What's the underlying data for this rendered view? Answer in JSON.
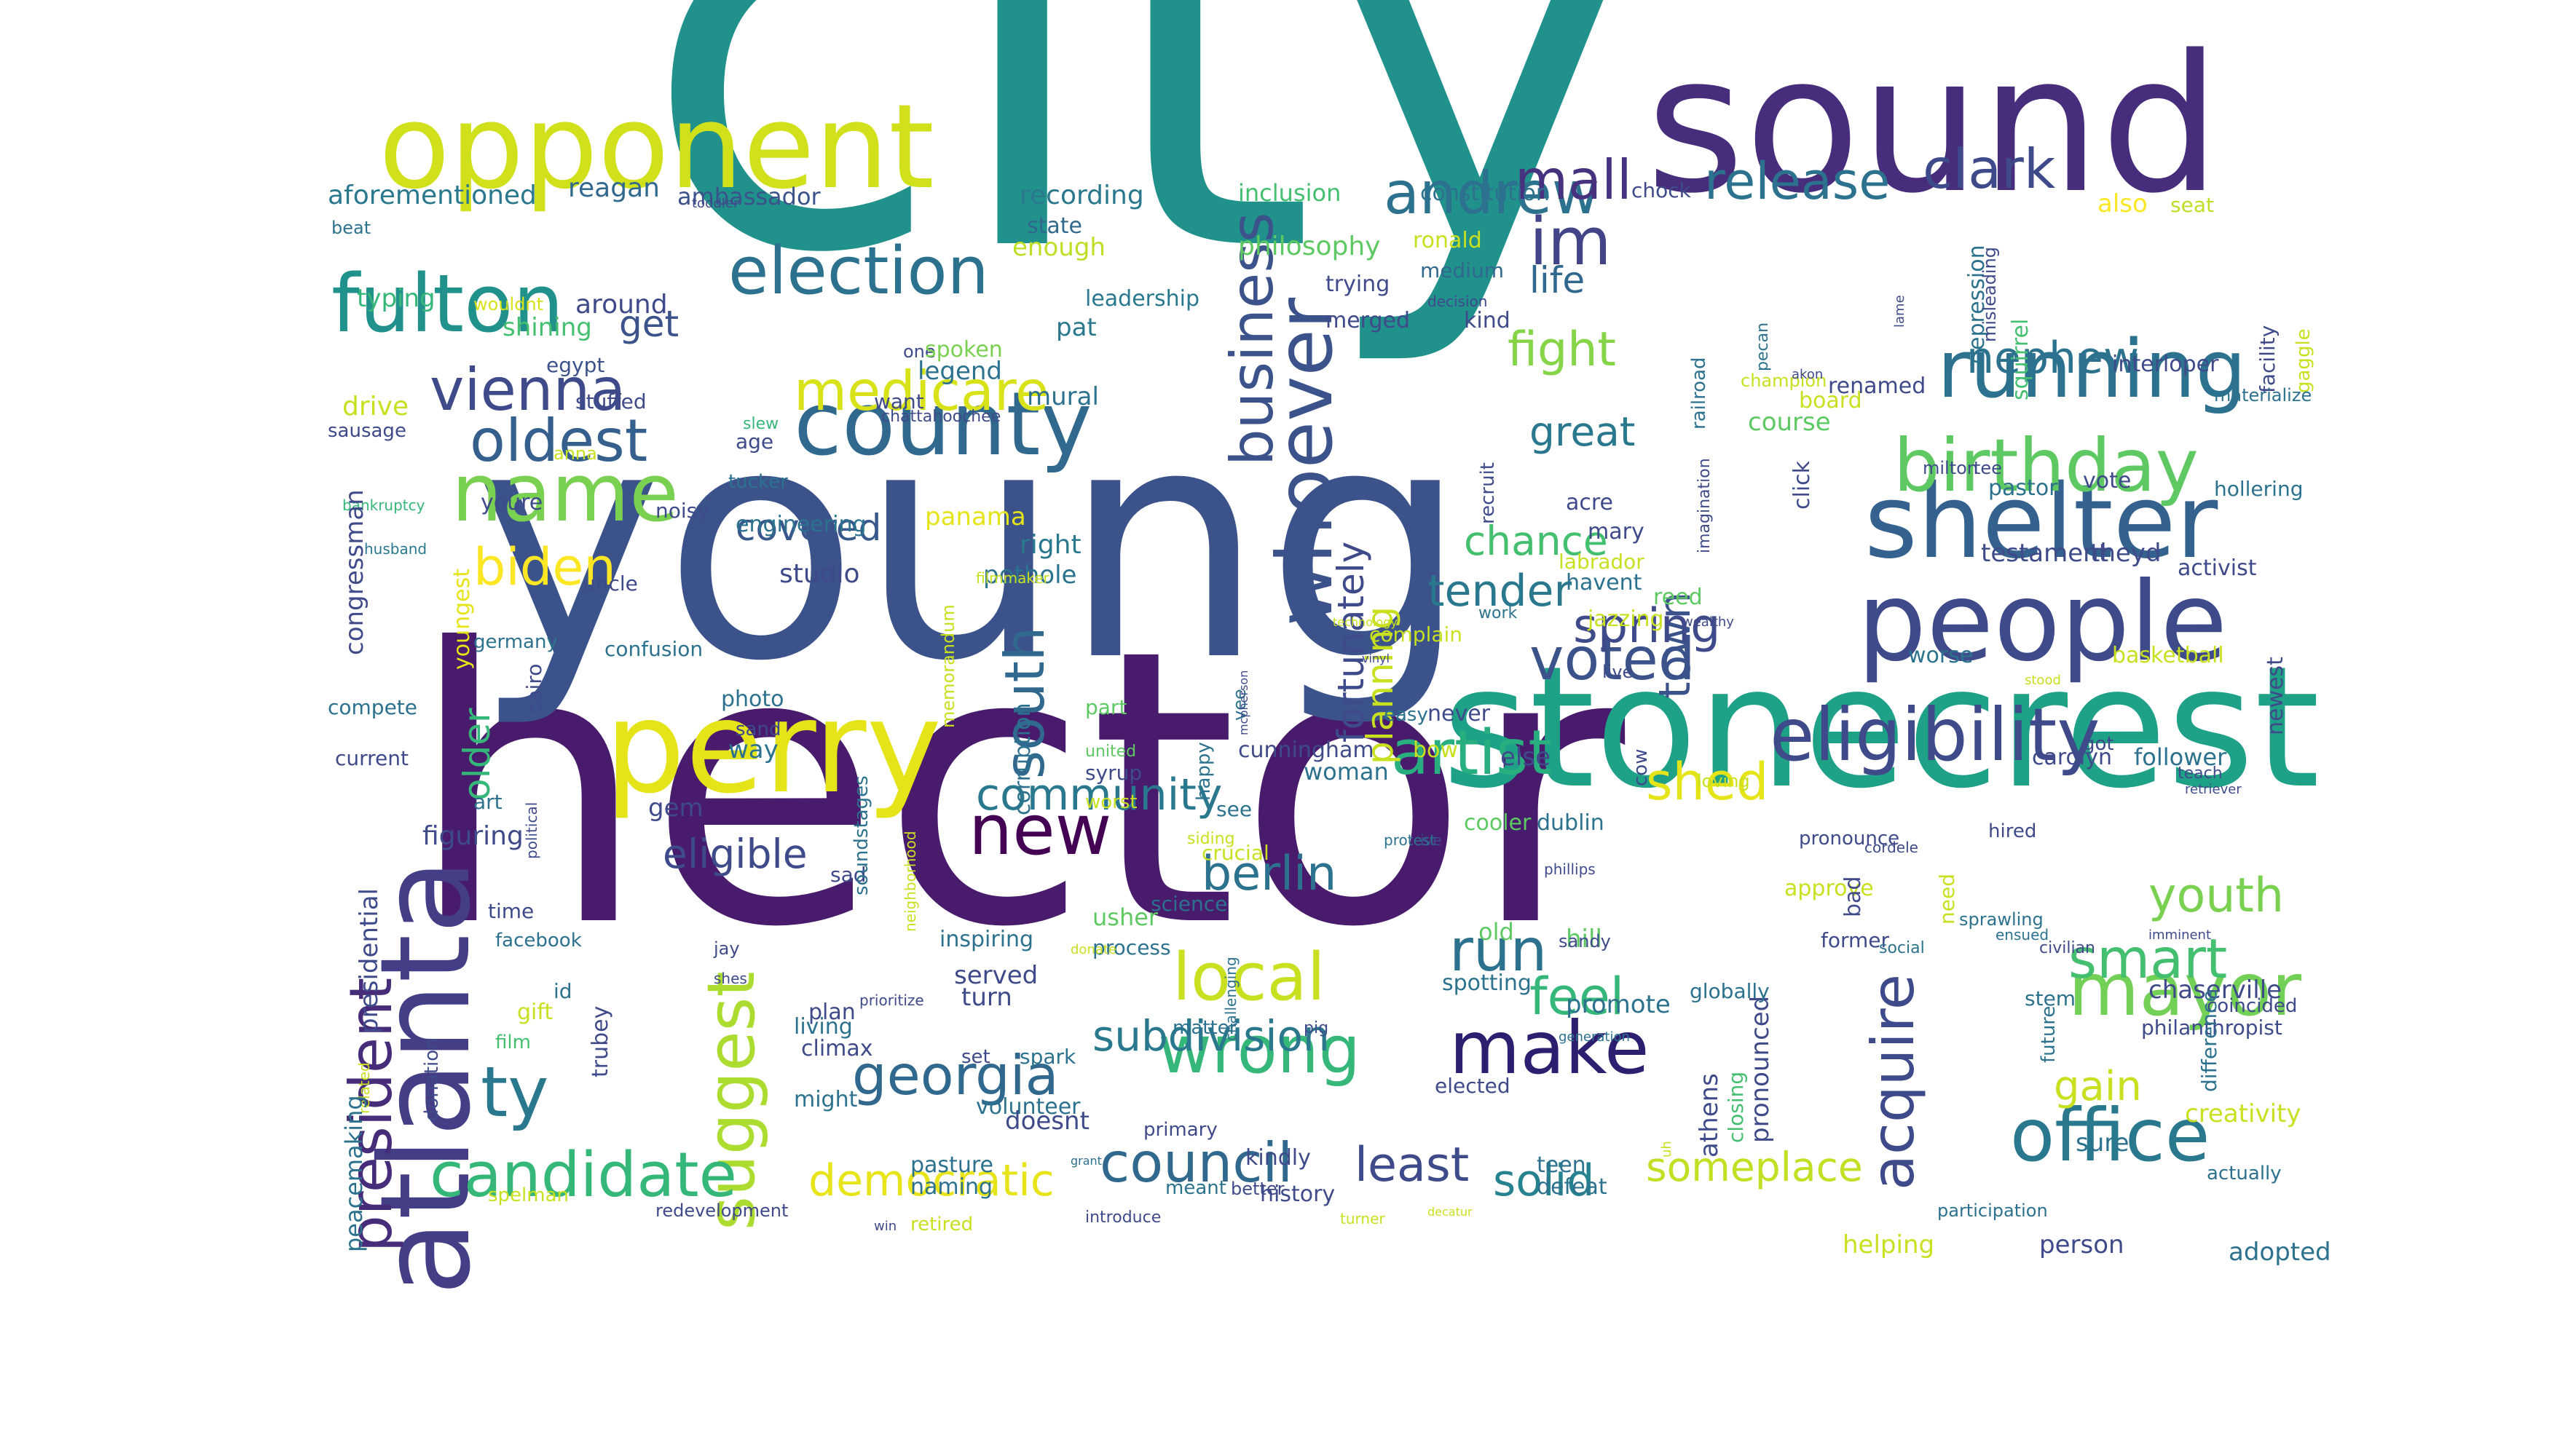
{
  "palette": [
    "#440154",
    "#482475",
    "#414487",
    "#355f8d",
    "#2a788e",
    "#21918c",
    "#22a884",
    "#44bf70",
    "#7ad151",
    "#bddf26",
    "#fde725"
  ],
  "words": [
    {
      "text": "hector",
      "color": "#481b6d"
    },
    {
      "text": "city",
      "color": "#21918c"
    },
    {
      "text": "young",
      "color": "#3b528b"
    },
    {
      "text": "sound",
      "color": "#472d7b"
    },
    {
      "text": "stonecrest",
      "color": "#1fa187"
    },
    {
      "text": "opponent",
      "color": "#d0e11c"
    },
    {
      "text": "people",
      "color": "#3e4a89"
    },
    {
      "text": "atlanta",
      "color": "#433e85"
    },
    {
      "text": "perry",
      "color": "#e5e419"
    },
    {
      "text": "shelter",
      "color": "#34618d"
    },
    {
      "text": "president",
      "color": "#472c7a"
    },
    {
      "text": "fulton",
      "color": "#21918c"
    },
    {
      "text": "county",
      "color": "#31688e"
    },
    {
      "text": "whoever",
      "color": "#3b528b"
    },
    {
      "text": "running",
      "color": "#2c728e"
    },
    {
      "text": "eligibility",
      "color": "#3e4a89"
    },
    {
      "text": "office",
      "color": "#2a788e"
    },
    {
      "text": "birthday",
      "color": "#5ec962"
    },
    {
      "text": "election",
      "color": "#2c728e"
    },
    {
      "text": "business",
      "color": "#3b528b"
    },
    {
      "text": "mayor",
      "color": "#73d056"
    },
    {
      "text": "name",
      "color": "#7ad151"
    },
    {
      "text": "south",
      "color": "#31688e"
    },
    {
      "text": "new",
      "color": "#440154"
    },
    {
      "text": "wrong",
      "color": "#35b779"
    },
    {
      "text": "suggest",
      "color": "#addc30"
    },
    {
      "text": "candidate",
      "color": "#35b779"
    },
    {
      "text": "artist",
      "color": "#29af7f"
    },
    {
      "text": "make",
      "color": "#2d1e6f"
    },
    {
      "text": "local",
      "color": "#c8e020"
    },
    {
      "text": "voted",
      "color": "#3b528b"
    },
    {
      "text": "medicare",
      "color": "#d8e219"
    },
    {
      "text": "vienna",
      "color": "#3e4a89"
    },
    {
      "text": "oldest",
      "color": "#355f8d"
    },
    {
      "text": "andrew",
      "color": "#2c728e"
    },
    {
      "text": "release",
      "color": "#2c728e"
    },
    {
      "text": "clark",
      "color": "#3e4a89"
    },
    {
      "text": "mall",
      "color": "#46327e"
    },
    {
      "text": "im",
      "color": "#414487"
    },
    {
      "text": "acquire",
      "color": "#3e4a89"
    },
    {
      "text": "smart",
      "color": "#44bf70"
    },
    {
      "text": "youth",
      "color": "#7ad151"
    },
    {
      "text": "shed",
      "color": "#e5e419"
    },
    {
      "text": "biden",
      "color": "#fde725"
    },
    {
      "text": "ty",
      "color": "#2a788e"
    },
    {
      "text": "georgia",
      "color": "#31688e"
    },
    {
      "text": "subdivision",
      "color": "#2a788e"
    },
    {
      "text": "council",
      "color": "#31688e"
    },
    {
      "text": "democratic",
      "color": "#e7e419"
    },
    {
      "text": "least",
      "color": "#3e4a89"
    },
    {
      "text": "solid",
      "color": "#26828e"
    },
    {
      "text": "someplace",
      "color": "#c2df23"
    },
    {
      "text": "community",
      "color": "#2a788e"
    },
    {
      "text": "berlin",
      "color": "#2c728e"
    },
    {
      "text": "eligible",
      "color": "#3e4a89"
    },
    {
      "text": "run",
      "color": "#2c728e"
    },
    {
      "text": "feel",
      "color": "#35b779"
    },
    {
      "text": "town",
      "color": "#3b528b"
    },
    {
      "text": "fight",
      "color": "#86d549"
    },
    {
      "text": "tender",
      "color": "#2a788e"
    },
    {
      "text": "spring",
      "color": "#3e4a89"
    },
    {
      "text": "nephew",
      "color": "#2c728e"
    },
    {
      "text": "fortunately",
      "color": "#3e4a89"
    },
    {
      "text": "planning",
      "color": "#c8e020"
    },
    {
      "text": "covered",
      "color": "#38588c"
    },
    {
      "text": "older",
      "color": "#35b779"
    },
    {
      "text": "great",
      "color": "#2a788e"
    },
    {
      "text": "chance",
      "color": "#44bf70"
    },
    {
      "text": "get",
      "color": "#3b528b"
    },
    {
      "text": "life",
      "color": "#31688e"
    },
    {
      "text": "aforementioned",
      "color": "#2a788e"
    },
    {
      "text": "reagan",
      "color": "#31688e"
    },
    {
      "text": "ambassador",
      "color": "#3b528b"
    },
    {
      "text": "recording",
      "color": "#2a788e"
    },
    {
      "text": "inclusion",
      "color": "#44bf70"
    },
    {
      "text": "constitution",
      "color": "#2c728e"
    },
    {
      "text": "chock",
      "color": "#3e4a89"
    },
    {
      "text": "also",
      "color": "#fde725"
    },
    {
      "text": "seat",
      "color": "#bddf26"
    },
    {
      "text": "state",
      "color": "#31688e"
    },
    {
      "text": "enough",
      "color": "#bddf26"
    },
    {
      "text": "philosophy",
      "color": "#5ec962"
    },
    {
      "text": "ronald",
      "color": "#c8e020"
    },
    {
      "text": "medium",
      "color": "#31688e"
    },
    {
      "text": "typing",
      "color": "#35b779"
    },
    {
      "text": "wouldnt",
      "color": "#d8e219"
    },
    {
      "text": "around",
      "color": "#3e4a89"
    },
    {
      "text": "shining",
      "color": "#44bf70"
    },
    {
      "text": "egypt",
      "color": "#3b528b"
    },
    {
      "text": "leadership",
      "color": "#2a788e"
    },
    {
      "text": "trying",
      "color": "#3e4a89"
    },
    {
      "text": "merged",
      "color": "#3e4a89"
    },
    {
      "text": "kind",
      "color": "#3e4a89"
    },
    {
      "text": "pat",
      "color": "#2a788e"
    },
    {
      "text": "one",
      "color": "#3e4a89"
    },
    {
      "text": "spoken",
      "color": "#7ad151"
    },
    {
      "text": "legend",
      "color": "#2c728e"
    },
    {
      "text": "mural",
      "color": "#2c728e"
    },
    {
      "text": "drive",
      "color": "#c8e020"
    },
    {
      "text": "sausage",
      "color": "#3e4a89"
    },
    {
      "text": "stuffed",
      "color": "#3e4a89"
    },
    {
      "text": "want",
      "color": "#3e4a89"
    },
    {
      "text": "slew",
      "color": "#35b779"
    },
    {
      "text": "age",
      "color": "#3e4a89"
    },
    {
      "text": "chattahoochee",
      "color": "#3e4a89"
    },
    {
      "text": "anna",
      "color": "#c8e020"
    },
    {
      "text": "bankruptcy",
      "color": "#35b779"
    },
    {
      "text": "tucker",
      "color": "#2c728e"
    },
    {
      "text": "noisy",
      "color": "#3e4a89"
    },
    {
      "text": "youre",
      "color": "#3e4a89"
    },
    {
      "text": "congressman",
      "color": "#3e4a89"
    },
    {
      "text": "husband",
      "color": "#2a788e"
    },
    {
      "text": "engineering",
      "color": "#2c728e"
    },
    {
      "text": "panama",
      "color": "#e5e419"
    },
    {
      "text": "right",
      "color": "#2a788e"
    },
    {
      "text": "pothole",
      "color": "#2c728e"
    },
    {
      "text": "studio",
      "color": "#3e4a89"
    },
    {
      "text": "youngest",
      "color": "#e5e419"
    },
    {
      "text": "uncle",
      "color": "#3e4a89"
    },
    {
      "text": "germany",
      "color": "#2c728e"
    },
    {
      "text": "confusion",
      "color": "#2c728e"
    },
    {
      "text": "filmmaker",
      "color": "#c8e020"
    },
    {
      "text": "memorandum",
      "color": "#c8e020"
    },
    {
      "text": "compete",
      "color": "#2c728e"
    },
    {
      "text": "cairo",
      "color": "#3e4a89"
    },
    {
      "text": "photo",
      "color": "#2c728e"
    },
    {
      "text": "sand",
      "color": "#3e4a89"
    },
    {
      "text": "way",
      "color": "#2c728e"
    },
    {
      "text": "current",
      "color": "#3e4a89"
    },
    {
      "text": "corruption",
      "color": "#2c728e"
    },
    {
      "text": "part",
      "color": "#5ec962"
    },
    {
      "text": "united",
      "color": "#5ec962"
    },
    {
      "text": "syrup",
      "color": "#3e4a89"
    },
    {
      "text": "worst",
      "color": "#c8e020"
    },
    {
      "text": "happy",
      "color": "#2c728e"
    },
    {
      "text": "vee",
      "color": "#2c728e"
    },
    {
      "text": "mcpherson",
      "color": "#3e4a89"
    },
    {
      "text": "see",
      "color": "#2c728e"
    },
    {
      "text": "woman",
      "color": "#2c728e"
    },
    {
      "text": "gem",
      "color": "#3e4a89"
    },
    {
      "text": "art",
      "color": "#2c728e"
    },
    {
      "text": "figuring",
      "color": "#3e4a89"
    },
    {
      "text": "political",
      "color": "#3e4a89"
    },
    {
      "text": "sad",
      "color": "#3e4a89"
    },
    {
      "text": "soundstages",
      "color": "#2c728e"
    },
    {
      "text": "neighborhood",
      "color": "#c8e020"
    },
    {
      "text": "time",
      "color": "#3e4a89"
    },
    {
      "text": "facebook",
      "color": "#2c728e"
    },
    {
      "text": "jay",
      "color": "#3e4a89"
    },
    {
      "text": "presidential",
      "color": "#3e4a89"
    },
    {
      "text": "usher",
      "color": "#5ec962"
    },
    {
      "text": "process",
      "color": "#2c728e"
    },
    {
      "text": "science",
      "color": "#2c728e"
    },
    {
      "text": "donate",
      "color": "#c8e020"
    },
    {
      "text": "inspiring",
      "color": "#2c728e"
    },
    {
      "text": "served",
      "color": "#3e4a89"
    },
    {
      "text": "shes",
      "color": "#3e4a89"
    },
    {
      "text": "id",
      "color": "#2c728e"
    },
    {
      "text": "gift",
      "color": "#c8e020"
    },
    {
      "text": "film",
      "color": "#44bf70"
    },
    {
      "text": "trubey",
      "color": "#3e4a89"
    },
    {
      "text": "prioritize",
      "color": "#3e4a89"
    },
    {
      "text": "turn",
      "color": "#3e4a89"
    },
    {
      "text": "plan",
      "color": "#3e4a89"
    },
    {
      "text": "living",
      "color": "#2c728e"
    },
    {
      "text": "climax",
      "color": "#3e4a89"
    },
    {
      "text": "set",
      "color": "#3e4a89"
    },
    {
      "text": "spark",
      "color": "#2c728e"
    },
    {
      "text": "volunteer",
      "color": "#2c728e"
    },
    {
      "text": "doesnt",
      "color": "#3e4a89"
    },
    {
      "text": "might",
      "color": "#2c728e"
    },
    {
      "text": "grant",
      "color": "#2c728e"
    },
    {
      "text": "primary",
      "color": "#3e4a89"
    },
    {
      "text": "pasture",
      "color": "#2c728e"
    },
    {
      "text": "naming",
      "color": "#2c728e"
    },
    {
      "text": "donation",
      "color": "#3e4a89"
    },
    {
      "text": "related",
      "color": "#c8e020"
    },
    {
      "text": "peacemaking",
      "color": "#2c728e"
    },
    {
      "text": "spelman",
      "color": "#c8e020"
    },
    {
      "text": "redevelopment",
      "color": "#3e4a89"
    },
    {
      "text": "retired",
      "color": "#c8e020"
    },
    {
      "text": "win",
      "color": "#3e4a89"
    },
    {
      "text": "introduce",
      "color": "#3e4a89"
    },
    {
      "text": "history",
      "color": "#3e4a89"
    },
    {
      "text": "kindly",
      "color": "#3e4a89"
    },
    {
      "text": "meant",
      "color": "#2c728e"
    },
    {
      "text": "better",
      "color": "#3e4a89"
    },
    {
      "text": "matter",
      "color": "#2c728e"
    },
    {
      "text": "challenging",
      "color": "#2c728e"
    },
    {
      "text": "pig",
      "color": "#3e4a89"
    },
    {
      "text": "elected",
      "color": "#3e4a89"
    },
    {
      "text": "turner",
      "color": "#c8e020"
    },
    {
      "text": "decatur",
      "color": "#c8e020"
    },
    {
      "text": "teen",
      "color": "#2c728e"
    },
    {
      "text": "defeat",
      "color": "#2c728e"
    },
    {
      "text": "spotting",
      "color": "#2c728e"
    },
    {
      "text": "promote",
      "color": "#2c728e"
    },
    {
      "text": "hill",
      "color": "#5ec962"
    },
    {
      "text": "old",
      "color": "#5ec962"
    },
    {
      "text": "crucial",
      "color": "#c8e020"
    },
    {
      "text": "siding",
      "color": "#c8e020"
    },
    {
      "text": "ive",
      "color": "#3e4a89"
    },
    {
      "text": "protest",
      "color": "#2c728e"
    },
    {
      "text": "cooler",
      "color": "#5ec962"
    },
    {
      "text": "dublin",
      "color": "#2c728e"
    },
    {
      "text": "phillips",
      "color": "#3e4a89"
    },
    {
      "text": "sandy",
      "color": "#3e4a89"
    },
    {
      "text": "generation",
      "color": "#2c728e"
    },
    {
      "text": "athens",
      "color": "#3e4a89"
    },
    {
      "text": "closing",
      "color": "#44bf70"
    },
    {
      "text": "pronounced",
      "color": "#3e4a89"
    },
    {
      "text": "globally",
      "color": "#2c728e"
    },
    {
      "text": "uh",
      "color": "#c8e020"
    },
    {
      "text": "loving",
      "color": "#c8e020"
    },
    {
      "text": "cow",
      "color": "#3e4a89"
    },
    {
      "text": "live",
      "color": "#3e4a89"
    },
    {
      "text": "jazzing",
      "color": "#c8e020"
    },
    {
      "text": "wealthy",
      "color": "#3e4a89"
    },
    {
      "text": "reed",
      "color": "#5ec962"
    },
    {
      "text": "work",
      "color": "#2c728e"
    },
    {
      "text": "labrador",
      "color": "#c8e020"
    },
    {
      "text": "havent",
      "color": "#2c728e"
    },
    {
      "text": "mary",
      "color": "#3e4a89"
    },
    {
      "text": "acre",
      "color": "#3e4a89"
    },
    {
      "text": "recruit",
      "color": "#3e4a89"
    },
    {
      "text": "railroad",
      "color": "#2c728e"
    },
    {
      "text": "imagination",
      "color": "#3e4a89"
    },
    {
      "text": "complain",
      "color": "#c8e020"
    },
    {
      "text": "cunningham",
      "color": "#3e4a89"
    },
    {
      "text": "vinyl",
      "color": "#3e4a89"
    },
    {
      "text": "technology",
      "color": "#c8e020"
    },
    {
      "text": "never",
      "color": "#3e4a89"
    },
    {
      "text": "easy",
      "color": "#2c728e"
    },
    {
      "text": "bow",
      "color": "#c8e020"
    },
    {
      "text": "else",
      "color": "#3e4a89"
    },
    {
      "text": "decision",
      "color": "#3e4a89"
    },
    {
      "text": "pecan",
      "color": "#2c728e"
    },
    {
      "text": "champion",
      "color": "#c8e020"
    },
    {
      "text": "akon",
      "color": "#3e4a89"
    },
    {
      "text": "renamed",
      "color": "#3e4a89"
    },
    {
      "text": "board",
      "color": "#c8e020"
    },
    {
      "text": "course",
      "color": "#5ec962"
    },
    {
      "text": "click",
      "color": "#3e4a89"
    },
    {
      "text": "lame",
      "color": "#3e4a89"
    },
    {
      "text": "depression",
      "color": "#2c728e"
    },
    {
      "text": "misleading",
      "color": "#3e4a89"
    },
    {
      "text": "squirrel",
      "color": "#44bf70"
    },
    {
      "text": "interloper",
      "color": "#3e4a89"
    },
    {
      "text": "facility",
      "color": "#3e4a89"
    },
    {
      "text": "gaggle",
      "color": "#c8e020"
    },
    {
      "text": "materialize",
      "color": "#2c728e"
    },
    {
      "text": "hollering",
      "color": "#2c728e"
    },
    {
      "text": "milton",
      "color": "#3e4a89"
    },
    {
      "text": "tee",
      "color": "#3e4a89"
    },
    {
      "text": "pastor",
      "color": "#2c728e"
    },
    {
      "text": "vote",
      "color": "#3e4a89"
    },
    {
      "text": "testament",
      "color": "#3e4a89"
    },
    {
      "text": "theyd",
      "color": "#3e4a89"
    },
    {
      "text": "activist",
      "color": "#3e4a89"
    },
    {
      "text": "worse",
      "color": "#2c728e"
    },
    {
      "text": "basketball",
      "color": "#c8e020"
    },
    {
      "text": "stood",
      "color": "#c8e020"
    },
    {
      "text": "carolyn",
      "color": "#3e4a89"
    },
    {
      "text": "newest",
      "color": "#3e4a89"
    },
    {
      "text": "got",
      "color": "#3e4a89"
    },
    {
      "text": "follower",
      "color": "#2c728e"
    },
    {
      "text": "teach",
      "color": "#3e4a89"
    },
    {
      "text": "retriever",
      "color": "#3e4a89"
    },
    {
      "text": "hired",
      "color": "#3e4a89"
    },
    {
      "text": "pronounce",
      "color": "#3e4a89"
    },
    {
      "text": "cordele",
      "color": "#3e4a89"
    },
    {
      "text": "approve",
      "color": "#c8e020"
    },
    {
      "text": "bad",
      "color": "#3e4a89"
    },
    {
      "text": "need",
      "color": "#c8e020"
    },
    {
      "text": "sprawling",
      "color": "#2c728e"
    },
    {
      "text": "ensued",
      "color": "#2c728e"
    },
    {
      "text": "civilian",
      "color": "#3e4a89"
    },
    {
      "text": "imminent",
      "color": "#3e4a89"
    },
    {
      "text": "former",
      "color": "#3e4a89"
    },
    {
      "text": "chaserville",
      "color": "#3e4a89"
    },
    {
      "text": "social",
      "color": "#2c728e"
    },
    {
      "text": "philanthropist",
      "color": "#3e4a89"
    },
    {
      "text": "future",
      "color": "#2c728e"
    },
    {
      "text": "stem",
      "color": "#2c728e"
    },
    {
      "text": "coincided",
      "color": "#3e4a89"
    },
    {
      "text": "difference",
      "color": "#2c728e"
    },
    {
      "text": "gain",
      "color": "#c8e020"
    },
    {
      "text": "creativity",
      "color": "#c8e020"
    },
    {
      "text": "sure",
      "color": "#2c728e"
    },
    {
      "text": "actually",
      "color": "#2c728e"
    },
    {
      "text": "participation",
      "color": "#2c728e"
    },
    {
      "text": "helping",
      "color": "#c8e020"
    },
    {
      "text": "person",
      "color": "#3e4a89"
    },
    {
      "text": "adopted",
      "color": "#2c728e"
    },
    {
      "text": "toddler",
      "color": "#3e4a89"
    },
    {
      "text": "beat",
      "color": "#2c728e"
    },
    {
      "text": "leslie",
      "color": "#3e4a89"
    },
    {
      "text": "vie",
      "color": "#3e4a89"
    }
  ]
}
